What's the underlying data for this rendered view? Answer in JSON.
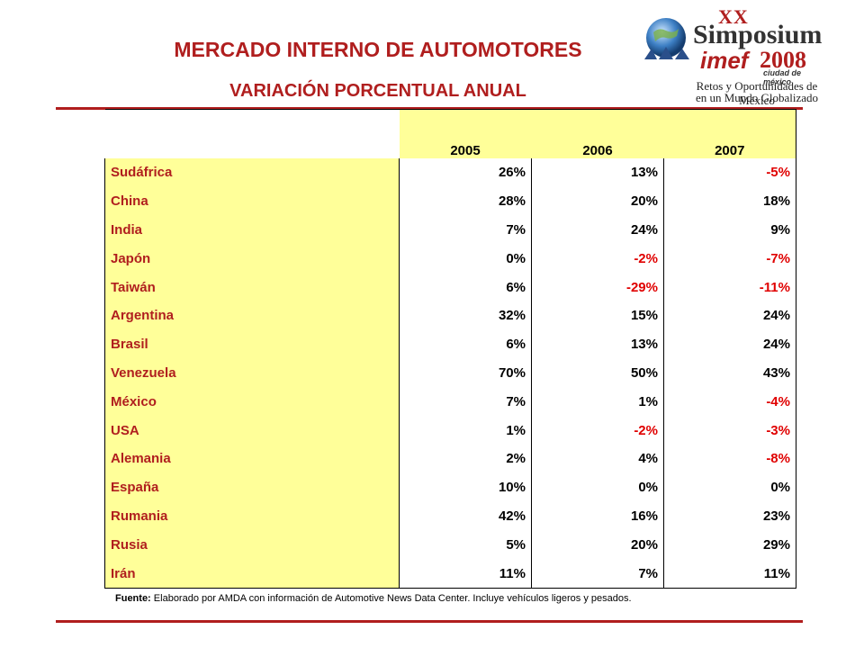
{
  "title": "MERCADO INTERNO DE AUTOMOTORES",
  "subtitle": "VARIACIÓN PORCENTUAL ANUAL",
  "logo": {
    "xx": "XX",
    "simposium": "Simposium",
    "imef": "imef",
    "year": "2008",
    "city": "ciudad de méxico",
    "tagline_1": "Retos y Oportunidades de México",
    "tagline_2": "en un Mundo Globalizado"
  },
  "table": {
    "years": [
      "2005",
      "2006",
      "2007"
    ],
    "rows": [
      {
        "country": "Sudáfrica",
        "v": [
          "26%",
          "13%",
          "-5%"
        ]
      },
      {
        "country": "China",
        "v": [
          "28%",
          "20%",
          "18%"
        ]
      },
      {
        "country": "India",
        "v": [
          "7%",
          "24%",
          "9%"
        ]
      },
      {
        "country": "Japón",
        "v": [
          "0%",
          "-2%",
          "-7%"
        ]
      },
      {
        "country": "Taiwán",
        "v": [
          "6%",
          "-29%",
          "-11%"
        ]
      },
      {
        "country": "Argentina",
        "v": [
          "32%",
          "15%",
          "24%"
        ]
      },
      {
        "country": "Brasil",
        "v": [
          "6%",
          "13%",
          "24%"
        ]
      },
      {
        "country": "Venezuela",
        "v": [
          "70%",
          "50%",
          "43%"
        ]
      },
      {
        "country": "México",
        "v": [
          "7%",
          "1%",
          "-4%"
        ]
      },
      {
        "country": "USA",
        "v": [
          "1%",
          "-2%",
          "-3%"
        ]
      },
      {
        "country": "Alemania",
        "v": [
          "2%",
          "4%",
          "-8%"
        ]
      },
      {
        "country": "España",
        "v": [
          "10%",
          "0%",
          "0%"
        ]
      },
      {
        "country": "Rumania",
        "v": [
          "42%",
          "16%",
          "23%"
        ]
      },
      {
        "country": "Rusia",
        "v": [
          "5%",
          "20%",
          "29%"
        ]
      },
      {
        "country": "Irán",
        "v": [
          "11%",
          "7%",
          "11%"
        ]
      }
    ]
  },
  "source": {
    "label": "Fuente:",
    "text": "Elaborado por AMDA con información de Automotive News Data Center. Incluye vehículos ligeros y pesados."
  },
  "colors": {
    "accent": "#b01e1e",
    "negative": "#e00000",
    "highlight": "#ffff99"
  }
}
